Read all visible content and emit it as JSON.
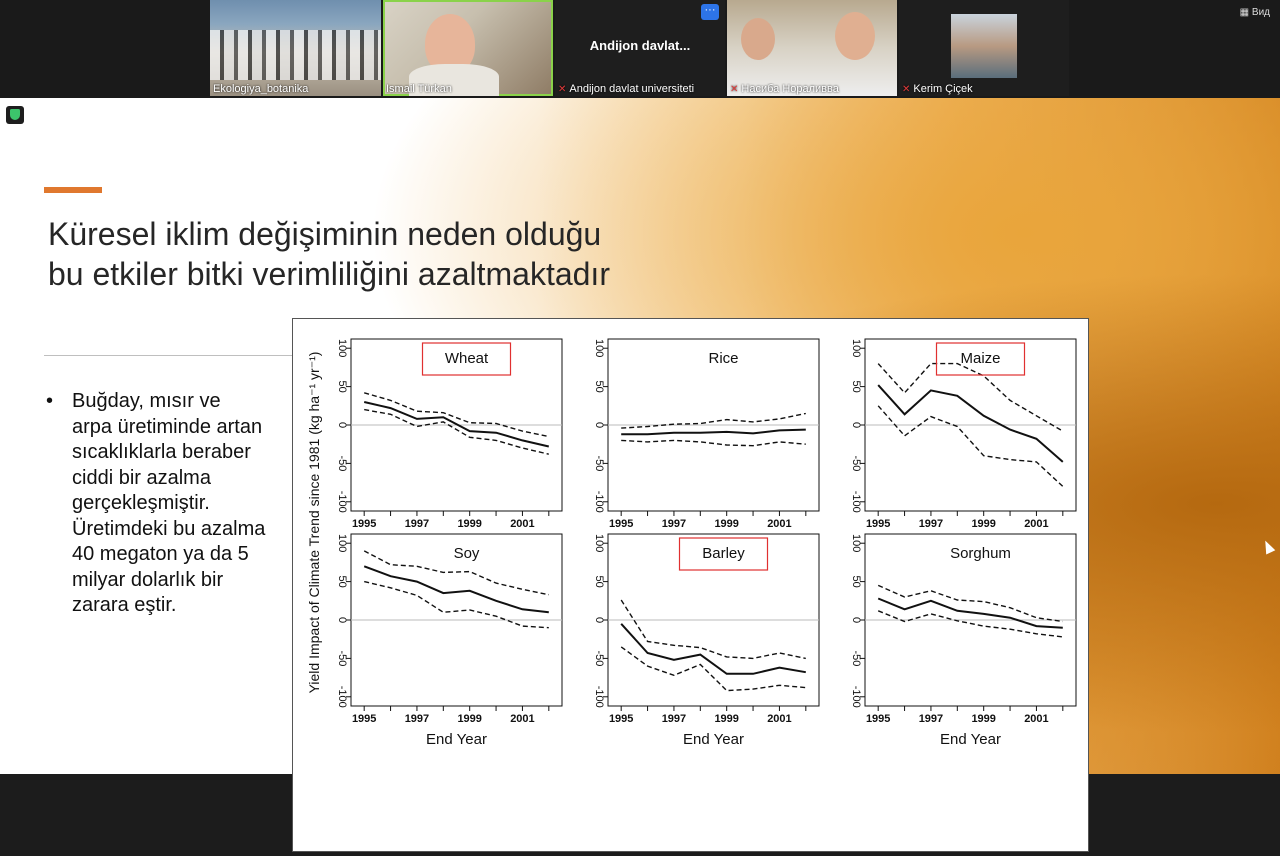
{
  "meeting": {
    "view_label": "Вид",
    "participants": [
      {
        "name": "Ekologiya_botanika",
        "muted": false,
        "video": true,
        "active": false
      },
      {
        "name": "Ismail Türkan",
        "muted": false,
        "video": true,
        "active": true
      },
      {
        "name": "Andijon davlat universiteti",
        "display": "Andijon  davlat...",
        "muted": true,
        "video": false,
        "active": false,
        "menu": "···"
      },
      {
        "name": "Насиба Нораливва",
        "muted": true,
        "video": true,
        "active": false
      },
      {
        "name": "Kerim Çiçek",
        "muted": true,
        "video": true,
        "active": false
      }
    ]
  },
  "slide": {
    "title_line1": "Küresel iklim değişiminin neden olduğu",
    "title_line2": "bu etkiler bitki verimliliğini azaltmaktadır",
    "bullet": "Buğday, mısır ve arpa üretiminde artan sıcaklıklarla beraber ciddi bir azalma gerçekleşmiştir. Üretimdeki bu azalma 40 megaton ya da 5 milyar dolarlık bir zarara eştir.",
    "colors": {
      "accent": "#e0782e",
      "highlight_box": "#e03030"
    }
  },
  "chart_data": {
    "type": "line",
    "ylabel": "Yield Impact of Climate Trend since 1981 (kg ha⁻¹ yr⁻¹)",
    "xlabel": "End Year",
    "x": [
      1995,
      1996,
      1997,
      1998,
      1999,
      2000,
      2001,
      2002
    ],
    "xticks": [
      1995,
      1997,
      1999,
      2001
    ],
    "ylim": [
      -100,
      100
    ],
    "yticks": [
      -100,
      -50,
      0,
      50,
      100
    ],
    "grid": false,
    "panels": [
      {
        "name": "Wheat",
        "highlighted": true,
        "mean": [
          30,
          22,
          8,
          10,
          -8,
          -10,
          -20,
          -28
        ],
        "upper": [
          42,
          32,
          18,
          16,
          3,
          2,
          -8,
          -15
        ],
        "lower": [
          20,
          14,
          -2,
          4,
          -16,
          -20,
          -30,
          -38
        ]
      },
      {
        "name": "Rice",
        "highlighted": false,
        "mean": [
          -12,
          -12,
          -10,
          -10,
          -9,
          -11,
          -7,
          -6
        ],
        "upper": [
          -4,
          -2,
          1,
          2,
          7,
          4,
          8,
          15
        ],
        "lower": [
          -20,
          -22,
          -20,
          -22,
          -26,
          -27,
          -22,
          -25
        ]
      },
      {
        "name": "Maize",
        "highlighted": true,
        "mean": [
          52,
          14,
          45,
          38,
          12,
          -6,
          -18,
          -48
        ],
        "upper": [
          80,
          42,
          80,
          80,
          64,
          32,
          12,
          -8
        ],
        "lower": [
          25,
          -14,
          11,
          -2,
          -40,
          -45,
          -48,
          -80
        ]
      },
      {
        "name": "Soy",
        "highlighted": false,
        "mean": [
          70,
          57,
          50,
          35,
          38,
          25,
          14,
          10
        ],
        "upper": [
          90,
          72,
          70,
          62,
          63,
          48,
          40,
          33
        ],
        "lower": [
          50,
          42,
          32,
          10,
          13,
          5,
          -8,
          -10
        ]
      },
      {
        "name": "Barley",
        "highlighted": true,
        "mean": [
          -5,
          -43,
          -52,
          -45,
          -70,
          -70,
          -62,
          -68
        ],
        "upper": [
          26,
          -28,
          -33,
          -36,
          -48,
          -50,
          -43,
          -50
        ],
        "lower": [
          -35,
          -60,
          -72,
          -58,
          -92,
          -90,
          -85,
          -88
        ]
      },
      {
        "name": "Sorghum",
        "highlighted": false,
        "mean": [
          28,
          14,
          25,
          12,
          8,
          3,
          -8,
          -10
        ],
        "upper": [
          45,
          30,
          38,
          26,
          24,
          16,
          3,
          -2
        ],
        "lower": [
          12,
          -2,
          8,
          -1,
          -8,
          -12,
          -18,
          -22
        ]
      }
    ]
  }
}
